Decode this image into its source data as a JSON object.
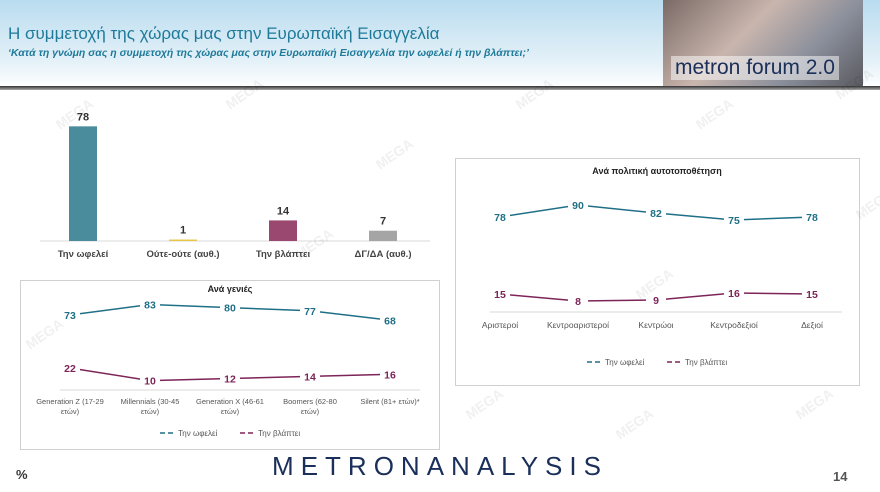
{
  "header": {
    "title": "Η συμμετοχή της χώρας μας στην Ευρωπαϊκή Εισαγγελία",
    "subtitle": "‘Κατά τη γνώμη σας η συμμετοχή της χώρας μας στην Ευρωπαϊκή Εισαγγελία την ωφελεί ή την βλάπτει;’",
    "logo_text": "metron forum 2.0"
  },
  "footer": {
    "brand": "METRONANALYSIS",
    "unit": "%",
    "page": "14"
  },
  "watermark": "MEGA",
  "chart_data": [
    {
      "type": "bar",
      "categories": [
        "Την ωφελεί",
        "Ούτε-ούτε (αυθ.)",
        "Την βλάπτει",
        "ΔΓ/ΔΑ (αυθ.)"
      ],
      "values": [
        78,
        1,
        14,
        7
      ],
      "colors": [
        "#4a8b9c",
        "#e9c646",
        "#9a4870",
        "#a5a5a5"
      ]
    },
    {
      "type": "line",
      "title": "Ανά γενιές",
      "categories": [
        "Generation Z (17-29 ετών)",
        "Millennials (30-45 ετών)",
        "Generation X (46-61 ετών)",
        "Boomers (62-80 ετών)",
        "Silent (81+ ετών)*"
      ],
      "series": [
        {
          "name": "Την ωφελεί",
          "values": [
            73,
            83,
            80,
            77,
            68
          ],
          "color": "#1f6f86"
        },
        {
          "name": "Την βλάπτει",
          "values": [
            22,
            10,
            12,
            14,
            16
          ],
          "color": "#7d2458"
        }
      ],
      "legend": "bottom"
    },
    {
      "type": "line",
      "title": "Ανά πολιτική αυτοτοποθέτηση",
      "categories": [
        "Αριστεροί",
        "Κεντροαριστεροί",
        "Κεντρώοι",
        "Κεντροδεξιοί",
        "Δεξιοί"
      ],
      "series": [
        {
          "name": "Την ωφελεί",
          "values": [
            78,
            90,
            82,
            75,
            78
          ],
          "color": "#1f6f86"
        },
        {
          "name": "Την βλάπτει",
          "values": [
            15,
            8,
            9,
            16,
            15
          ],
          "color": "#7d2458"
        }
      ],
      "legend": "bottom"
    }
  ]
}
